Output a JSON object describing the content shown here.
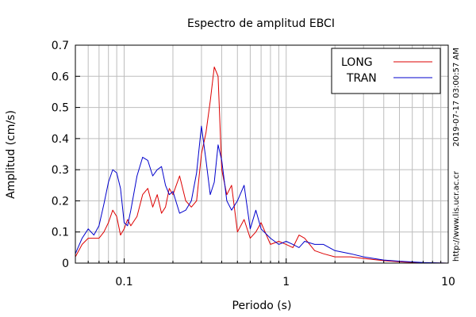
{
  "chart_data": {
    "type": "line",
    "title": "Espectro de amplitud EBCI",
    "xlabel": "Periodo (s)",
    "ylabel": "Amplitud (cm/s)",
    "xscale": "log",
    "xlim": [
      0.05,
      10
    ],
    "ylim": [
      0,
      0.7
    ],
    "grid": true,
    "legend_position": "top-right",
    "x_ticks": [
      {
        "value": 0.1,
        "label": "0.1"
      },
      {
        "value": 1,
        "label": "1"
      },
      {
        "value": 10,
        "label": "10"
      }
    ],
    "y_ticks": [
      {
        "value": 0,
        "label": "0"
      },
      {
        "value": 0.1,
        "label": "0.1"
      },
      {
        "value": 0.2,
        "label": "0.2"
      },
      {
        "value": 0.3,
        "label": "0.3"
      },
      {
        "value": 0.4,
        "label": "0.4"
      },
      {
        "value": 0.5,
        "label": "0.5"
      },
      {
        "value": 0.6,
        "label": "0.6"
      },
      {
        "value": 0.7,
        "label": "0.7"
      }
    ],
    "series": [
      {
        "name": "LONG",
        "color": "#dd0000",
        "x": [
          0.05,
          0.055,
          0.06,
          0.065,
          0.07,
          0.075,
          0.08,
          0.085,
          0.09,
          0.095,
          0.1,
          0.105,
          0.11,
          0.12,
          0.13,
          0.14,
          0.15,
          0.16,
          0.17,
          0.18,
          0.19,
          0.2,
          0.22,
          0.24,
          0.26,
          0.28,
          0.3,
          0.32,
          0.34,
          0.36,
          0.38,
          0.4,
          0.43,
          0.46,
          0.5,
          0.55,
          0.6,
          0.65,
          0.7,
          0.8,
          0.9,
          1.0,
          1.1,
          1.2,
          1.3,
          1.5,
          1.7,
          2.0,
          2.5,
          3.0,
          4.0,
          5.0,
          7.0,
          10.0
        ],
        "values": [
          0.02,
          0.06,
          0.08,
          0.08,
          0.08,
          0.1,
          0.13,
          0.17,
          0.15,
          0.09,
          0.11,
          0.14,
          0.12,
          0.15,
          0.22,
          0.24,
          0.18,
          0.22,
          0.16,
          0.18,
          0.24,
          0.22,
          0.28,
          0.2,
          0.18,
          0.2,
          0.35,
          0.42,
          0.52,
          0.63,
          0.6,
          0.3,
          0.22,
          0.25,
          0.1,
          0.14,
          0.08,
          0.1,
          0.13,
          0.06,
          0.07,
          0.06,
          0.05,
          0.09,
          0.08,
          0.04,
          0.03,
          0.02,
          0.02,
          0.015,
          0.008,
          0.004,
          0.001,
          0.0
        ]
      },
      {
        "name": "TRAN",
        "color": "#0000cc",
        "x": [
          0.05,
          0.055,
          0.06,
          0.065,
          0.07,
          0.075,
          0.08,
          0.085,
          0.09,
          0.095,
          0.1,
          0.105,
          0.11,
          0.12,
          0.13,
          0.14,
          0.15,
          0.16,
          0.17,
          0.18,
          0.19,
          0.2,
          0.22,
          0.24,
          0.26,
          0.28,
          0.3,
          0.32,
          0.34,
          0.36,
          0.38,
          0.4,
          0.43,
          0.46,
          0.5,
          0.55,
          0.6,
          0.65,
          0.7,
          0.8,
          0.9,
          1.0,
          1.1,
          1.2,
          1.3,
          1.5,
          1.7,
          2.0,
          2.5,
          3.0,
          4.0,
          5.0,
          7.0,
          10.0
        ],
        "values": [
          0.03,
          0.08,
          0.11,
          0.09,
          0.12,
          0.19,
          0.26,
          0.3,
          0.29,
          0.24,
          0.13,
          0.12,
          0.17,
          0.28,
          0.34,
          0.33,
          0.28,
          0.3,
          0.31,
          0.25,
          0.22,
          0.23,
          0.16,
          0.17,
          0.2,
          0.29,
          0.44,
          0.33,
          0.22,
          0.26,
          0.38,
          0.33,
          0.2,
          0.17,
          0.2,
          0.25,
          0.11,
          0.17,
          0.11,
          0.08,
          0.06,
          0.07,
          0.06,
          0.05,
          0.07,
          0.06,
          0.06,
          0.04,
          0.03,
          0.02,
          0.01,
          0.006,
          0.002,
          0.0
        ]
      }
    ]
  },
  "side_labels": {
    "timestamp": "2019-07-17 03:00:57 AM",
    "website": "http://www.lis.ucr.ac.cr"
  }
}
